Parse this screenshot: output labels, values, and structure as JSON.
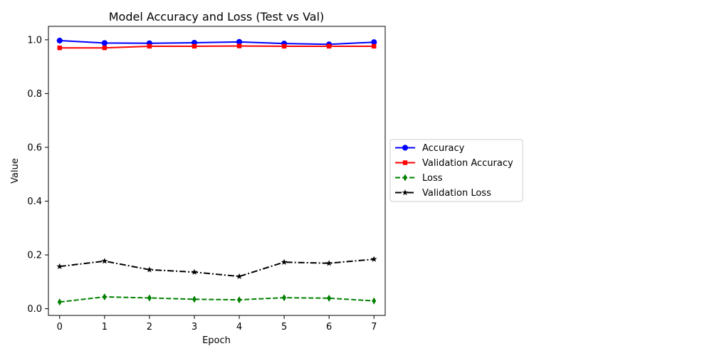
{
  "chart_data": {
    "type": "line",
    "title": "Model Accuracy and Loss (Test vs Val)",
    "xlabel": "Epoch",
    "ylabel": "Value",
    "xlim": [
      -0.25,
      7.25
    ],
    "ylim": [
      -0.025,
      1.05
    ],
    "x": [
      0,
      1,
      2,
      3,
      4,
      5,
      6,
      7
    ],
    "x_ticks": [
      "0",
      "1",
      "2",
      "3",
      "4",
      "5",
      "6",
      "7"
    ],
    "y_ticks": [
      0.0,
      0.2,
      0.4,
      0.6,
      0.8,
      1.0
    ],
    "y_tick_labels": [
      "0.0",
      "0.2",
      "0.4",
      "0.6",
      "0.8",
      "1.0"
    ],
    "grid": false,
    "legend_position": "center-right, outside plot",
    "series": [
      {
        "name": "Accuracy",
        "color": "#0000ff",
        "line_style": "solid",
        "marker": "circle",
        "values": [
          0.997,
          0.988,
          0.987,
          0.989,
          0.992,
          0.986,
          0.983,
          0.991
        ]
      },
      {
        "name": "Validation Accuracy",
        "color": "#ff0000",
        "line_style": "solid",
        "marker": "square",
        "values": [
          0.97,
          0.97,
          0.976,
          0.976,
          0.977,
          0.976,
          0.976,
          0.976
        ]
      },
      {
        "name": "Loss",
        "color": "#008000",
        "line_style": "dashed",
        "marker": "thin-diamond",
        "values": [
          0.025,
          0.044,
          0.04,
          0.035,
          0.033,
          0.041,
          0.039,
          0.029
        ]
      },
      {
        "name": "Validation Loss",
        "color": "#000000",
        "line_style": "dash-dot",
        "marker": "star",
        "values": [
          0.157,
          0.177,
          0.145,
          0.136,
          0.12,
          0.173,
          0.169,
          0.184
        ]
      }
    ]
  }
}
